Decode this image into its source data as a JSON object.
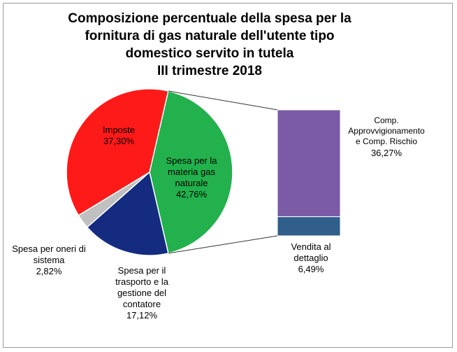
{
  "chart_data": {
    "type": "pie",
    "title": [
      "Composizione percentuale della spesa per la",
      "fornitura di gas naturale dell'utente tipo",
      "domestico servito in tutela",
      "III trimestre 2018"
    ],
    "slices": [
      {
        "name": [
          "Spesa per la",
          "materia gas",
          "naturale"
        ],
        "value": 42.76,
        "display": "42,76%",
        "color": "#22b14c"
      },
      {
        "name": [
          "Spesa per il",
          "trasporto e la",
          "gestione del",
          "contatore"
        ],
        "value": 17.12,
        "display": "17,12%",
        "color": "#142b80"
      },
      {
        "name": [
          "Spesa per oneri di",
          "sistema"
        ],
        "value": 2.82,
        "display": "2,82%",
        "color": "#c0c0c0"
      },
      {
        "name": [
          "Imposte"
        ],
        "value": 37.3,
        "display": "37,30%",
        "color": "#ff1a1a"
      }
    ],
    "breakdown": {
      "of": "Spesa per la materia gas naturale",
      "segments": [
        {
          "name": [
            "Comp.",
            "Approvvigionamento",
            "e  Comp. Rischio"
          ],
          "value": 36.27,
          "display": "36,27%",
          "color": "#7b5aa6"
        },
        {
          "name": [
            "Vendita al",
            "dettaglio"
          ],
          "value": 6.49,
          "display": "6,49%",
          "color": "#2f5f8a"
        }
      ]
    }
  }
}
